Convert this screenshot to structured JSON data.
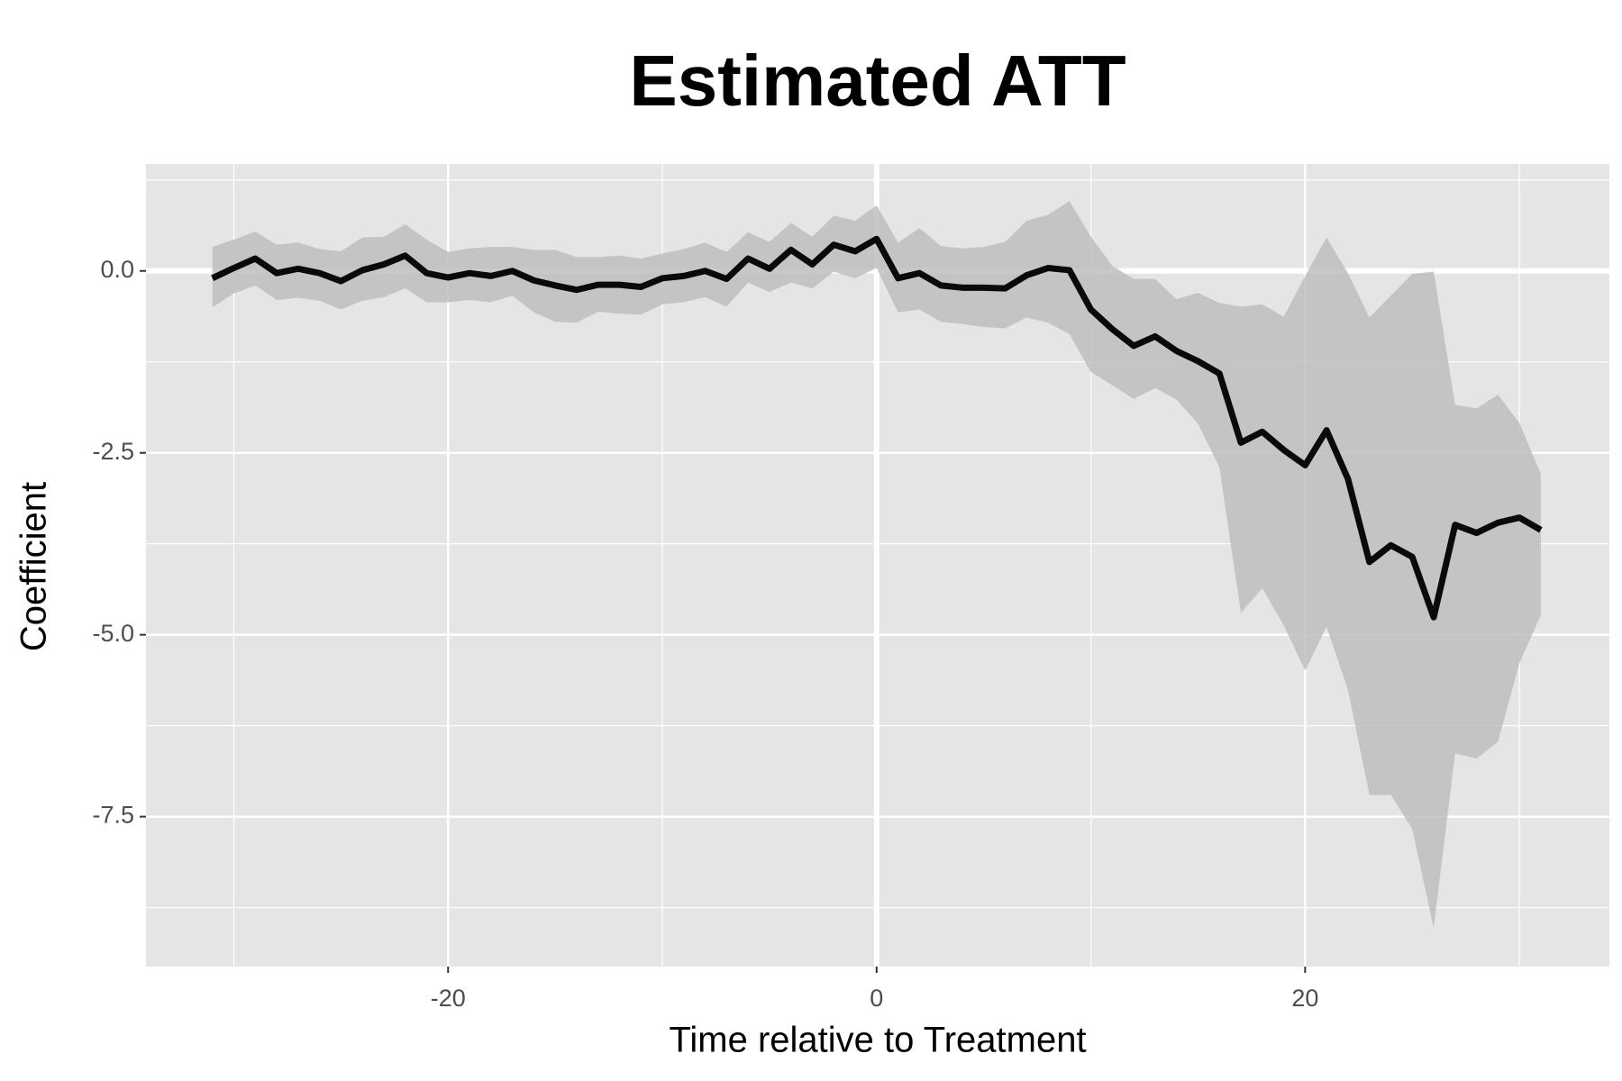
{
  "chart_data": {
    "type": "line",
    "title": "Estimated ATT",
    "x_label": "Time relative to Treatment",
    "y_label": "Coefficient",
    "x": [
      -31,
      -30,
      -29,
      -28,
      -27,
      -26,
      -25,
      -24,
      -23,
      -22,
      -21,
      -20,
      -19,
      -18,
      -17,
      -16,
      -15,
      -14,
      -13,
      -12,
      -11,
      -10,
      -9,
      -8,
      -7,
      -6,
      -5,
      -4,
      -3,
      -2,
      -1,
      0,
      1,
      2,
      3,
      4,
      5,
      6,
      7,
      8,
      9,
      10,
      11,
      12,
      13,
      14,
      15,
      16,
      17,
      18,
      19,
      20,
      21,
      22,
      23,
      24,
      25,
      26,
      27,
      28,
      29,
      30,
      31
    ],
    "values": [
      -0.1,
      0.04,
      0.17,
      -0.03,
      0.03,
      -0.03,
      -0.14,
      0.01,
      0.09,
      0.21,
      -0.03,
      -0.09,
      -0.03,
      -0.07,
      0.0,
      -0.13,
      -0.2,
      -0.26,
      -0.19,
      -0.19,
      -0.22,
      -0.1,
      -0.07,
      0.0,
      -0.11,
      0.17,
      0.03,
      0.29,
      0.09,
      0.36,
      0.27,
      0.44,
      -0.1,
      -0.03,
      -0.2,
      -0.23,
      -0.23,
      -0.24,
      -0.06,
      0.04,
      0.01,
      -0.53,
      -0.8,
      -1.03,
      -0.9,
      -1.1,
      -1.24,
      -1.41,
      -2.36,
      -2.21,
      -2.46,
      -2.67,
      -2.19,
      -2.86,
      -4.0,
      -3.77,
      -3.93,
      -4.76,
      -3.49,
      -3.6,
      -3.46,
      -3.39,
      -3.56
    ],
    "upper": [
      0.33,
      0.43,
      0.54,
      0.36,
      0.39,
      0.3,
      0.27,
      0.46,
      0.47,
      0.64,
      0.43,
      0.26,
      0.31,
      0.33,
      0.33,
      0.29,
      0.29,
      0.19,
      0.19,
      0.21,
      0.17,
      0.24,
      0.3,
      0.39,
      0.26,
      0.53,
      0.4,
      0.66,
      0.47,
      0.76,
      0.69,
      0.9,
      0.39,
      0.59,
      0.34,
      0.31,
      0.33,
      0.4,
      0.69,
      0.77,
      0.96,
      0.47,
      0.07,
      -0.11,
      -0.11,
      -0.39,
      -0.3,
      -0.44,
      -0.49,
      -0.46,
      -0.63,
      -0.07,
      0.46,
      -0.03,
      -0.64,
      -0.34,
      -0.04,
      -0.01,
      -1.84,
      -1.89,
      -1.7,
      -2.09,
      -2.79
    ],
    "lower": [
      -0.5,
      -0.31,
      -0.2,
      -0.4,
      -0.37,
      -0.41,
      -0.53,
      -0.41,
      -0.36,
      -0.24,
      -0.43,
      -0.43,
      -0.4,
      -0.43,
      -0.34,
      -0.57,
      -0.7,
      -0.71,
      -0.56,
      -0.59,
      -0.6,
      -0.46,
      -0.43,
      -0.36,
      -0.49,
      -0.16,
      -0.29,
      -0.16,
      -0.24,
      -0.01,
      -0.1,
      0.04,
      -0.57,
      -0.53,
      -0.7,
      -0.73,
      -0.77,
      -0.79,
      -0.64,
      -0.71,
      -0.87,
      -1.39,
      -1.57,
      -1.76,
      -1.61,
      -1.77,
      -2.1,
      -2.7,
      -4.7,
      -4.36,
      -4.87,
      -5.49,
      -4.89,
      -5.76,
      -7.2,
      -7.2,
      -7.67,
      -9.03,
      -6.63,
      -6.7,
      -6.47,
      -5.39,
      -4.73
    ],
    "color": "#0a0a0a",
    "band_color": "#bebebe",
    "xlim": [
      -34.1,
      34.2
    ],
    "ylim": [
      -9.56,
      1.47
    ],
    "xticks": [
      -20,
      0,
      20
    ],
    "yticks": [
      {
        "value": 0,
        "label": "0.0"
      },
      -2.5,
      {
        "value": -5,
        "label": "-5.0"
      },
      -7.5
    ],
    "x_minor_grid": [
      -30,
      -10,
      10,
      30
    ],
    "y_minor_grid": [
      1.25,
      -1.25,
      -3.75,
      -6.25,
      -8.75
    ],
    "hline": 0,
    "vline": 0,
    "grid": true
  }
}
